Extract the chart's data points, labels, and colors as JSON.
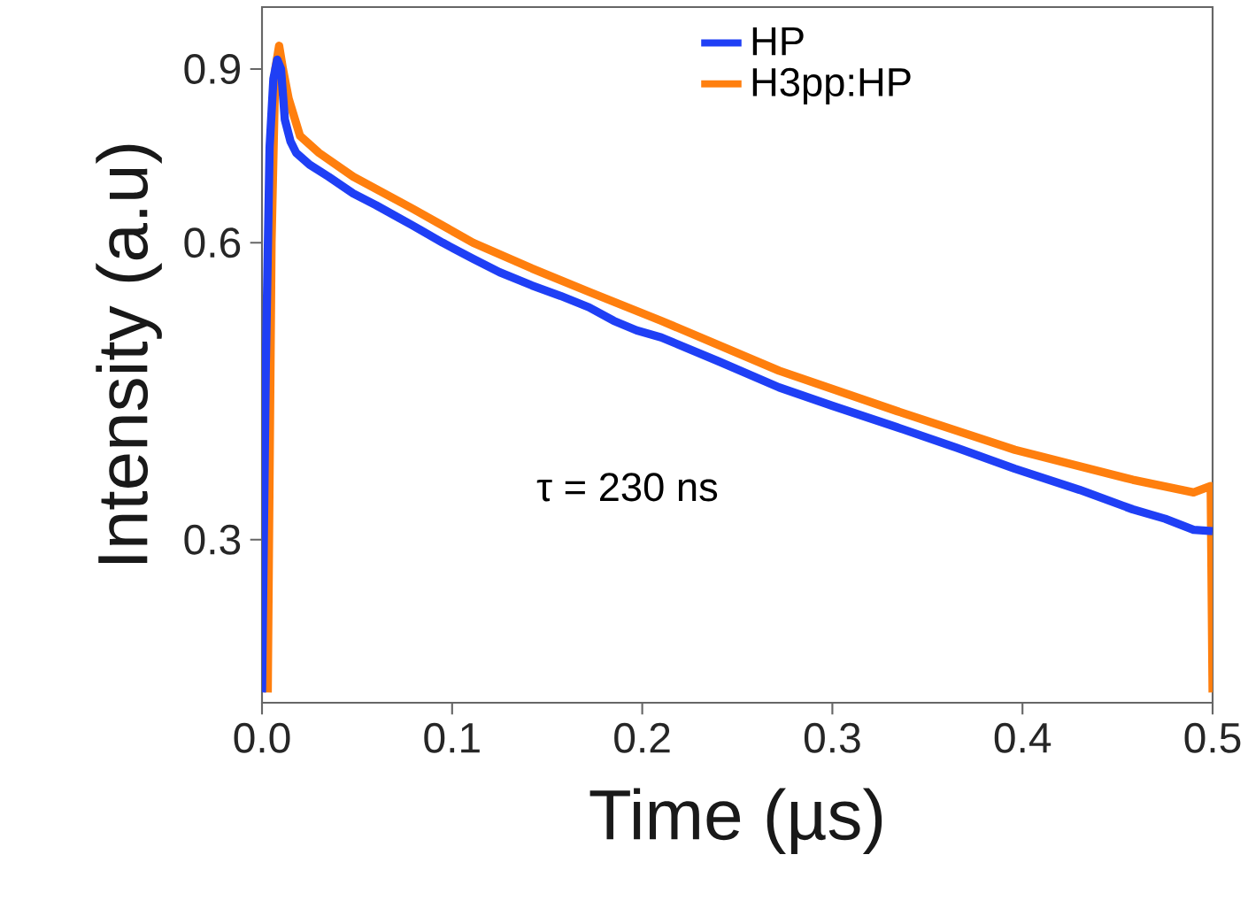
{
  "chart_data": {
    "type": "line",
    "xlabel": "Time (µs)",
    "ylabel": "Intensity (a.u)",
    "log": "y",
    "xlim": [
      0,
      0.5
    ],
    "xticks": [
      {
        "value": 0,
        "label": "0.0"
      },
      0.1,
      0.2,
      0.3,
      0.4,
      0.5
    ],
    "ylim": [
      0.205,
      1.04
    ],
    "yticks": [
      0.3,
      0.6,
      0.9
    ],
    "grid": false,
    "legend": "top",
    "marker": "none",
    "line_style": "solid",
    "annotations": [
      "τ = 230 ns"
    ],
    "series": [
      {
        "name": "HP",
        "color": "#1f3ff5",
        "x": [
          0,
          0.002,
          0.004,
          0.006,
          0.008,
          0.01,
          0.012,
          0.015,
          0.018,
          0.025,
          0.035,
          0.048,
          0.06,
          0.079,
          0.095,
          0.111,
          0.125,
          0.142,
          0.157,
          0.172,
          0.185,
          0.197,
          0.21,
          0.24,
          0.272,
          0.3,
          0.334,
          0.365,
          0.396,
          0.43,
          0.458,
          0.475,
          0.49,
          0.5
        ],
        "values": [
          0.21,
          0.45,
          0.75,
          0.88,
          0.92,
          0.9,
          0.8,
          0.76,
          0.74,
          0.72,
          0.7,
          0.673,
          0.655,
          0.625,
          0.6,
          0.578,
          0.56,
          0.543,
          0.53,
          0.516,
          0.5,
          0.489,
          0.481,
          0.455,
          0.428,
          0.41,
          0.39,
          0.372,
          0.354,
          0.337,
          0.322,
          0.315,
          0.307,
          0.306
        ]
      },
      {
        "name": "H3pp:HP",
        "color": "#ff7f0e",
        "x": [
          0.003,
          0.005,
          0.007,
          0.009,
          0.011,
          0.014,
          0.02,
          0.03,
          0.048,
          0.079,
          0.111,
          0.142,
          0.172,
          0.21,
          0.272,
          0.334,
          0.396,
          0.458,
          0.49,
          0.499,
          0.5
        ],
        "values": [
          0.21,
          0.6,
          0.9,
          0.95,
          0.9,
          0.84,
          0.77,
          0.74,
          0.7,
          0.65,
          0.6,
          0.565,
          0.535,
          0.5,
          0.445,
          0.405,
          0.37,
          0.345,
          0.335,
          0.34,
          0.21
        ]
      }
    ]
  }
}
